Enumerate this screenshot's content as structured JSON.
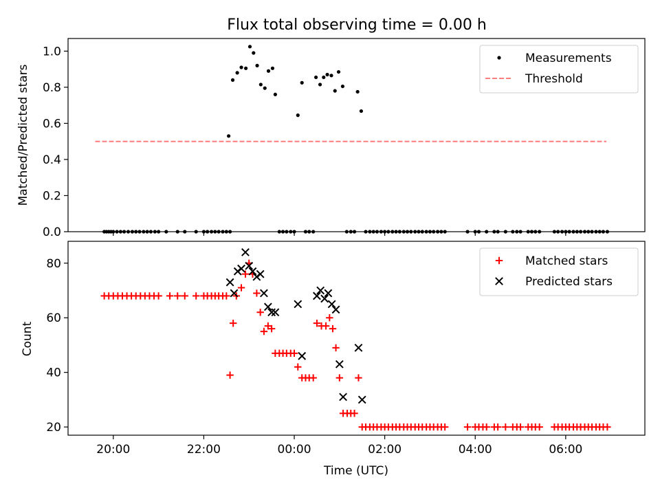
{
  "figure": {
    "title": "Flux total observing time = 0.00 h"
  },
  "chart_data": [
    {
      "type": "scatter",
      "title": "Flux total observing time = 0.00 h",
      "xlabel": "",
      "ylabel": "Matched/Predicted stars",
      "x_unit": "hours since 00:00 UTC",
      "xlim": [
        -5.0,
        7.75
      ],
      "ylim": [
        0.0,
        1.07
      ],
      "yticks": [
        0.0,
        0.2,
        0.4,
        0.6,
        0.8,
        1.0
      ],
      "ytick_labels": [
        "0.0",
        "0.2",
        "0.4",
        "0.6",
        "0.8",
        "1.0"
      ],
      "grid": false,
      "legend": "top-right",
      "series": [
        {
          "name": "Measurements",
          "kind": "scatter",
          "marker": "dot",
          "color": "#000000",
          "points": [
            [
              -4.2,
              0.0
            ],
            [
              -4.15,
              0.0
            ],
            [
              -4.1,
              0.0
            ],
            [
              -4.05,
              0.0
            ],
            [
              -4.0,
              0.0
            ],
            [
              -3.92,
              0.0
            ],
            [
              -3.84,
              0.0
            ],
            [
              -3.76,
              0.0
            ],
            [
              -3.67,
              0.0
            ],
            [
              -3.58,
              0.0
            ],
            [
              -3.5,
              0.0
            ],
            [
              -3.42,
              0.0
            ],
            [
              -3.33,
              0.0
            ],
            [
              -3.25,
              0.0
            ],
            [
              -3.17,
              0.0
            ],
            [
              -3.08,
              0.0
            ],
            [
              -3.0,
              0.0
            ],
            [
              -2.83,
              0.0
            ],
            [
              -2.58,
              0.0
            ],
            [
              -2.42,
              0.0
            ],
            [
              -2.17,
              0.0
            ],
            [
              -2.0,
              0.0
            ],
            [
              -1.92,
              0.0
            ],
            [
              -1.83,
              0.0
            ],
            [
              -1.75,
              0.0
            ],
            [
              -1.67,
              0.0
            ],
            [
              -1.58,
              0.0
            ],
            [
              -1.5,
              0.0
            ],
            [
              -1.42,
              0.0
            ],
            [
              -1.45,
              0.53
            ],
            [
              -1.36,
              0.84
            ],
            [
              -1.26,
              0.88
            ],
            [
              -1.17,
              0.91
            ],
            [
              -1.07,
              0.905
            ],
            [
              -0.98,
              1.025
            ],
            [
              -0.9,
              0.99
            ],
            [
              -0.82,
              0.92
            ],
            [
              -0.74,
              0.815
            ],
            [
              -0.65,
              0.795
            ],
            [
              -0.57,
              0.89
            ],
            [
              -0.48,
              0.905
            ],
            [
              -0.42,
              0.76
            ],
            [
              -0.33,
              0.0
            ],
            [
              -0.25,
              0.0
            ],
            [
              -0.17,
              0.0
            ],
            [
              -0.08,
              0.0
            ],
            [
              0.0,
              0.0
            ],
            [
              0.08,
              0.645
            ],
            [
              0.17,
              0.825
            ],
            [
              0.25,
              0.0
            ],
            [
              0.33,
              0.0
            ],
            [
              0.42,
              0.0
            ],
            [
              0.48,
              0.855
            ],
            [
              0.57,
              0.815
            ],
            [
              0.65,
              0.855
            ],
            [
              0.73,
              0.87
            ],
            [
              0.82,
              0.865
            ],
            [
              0.9,
              0.78
            ],
            [
              0.98,
              0.885
            ],
            [
              1.07,
              0.805
            ],
            [
              1.16,
              0.0
            ],
            [
              1.25,
              0.0
            ],
            [
              1.33,
              0.0
            ],
            [
              1.4,
              0.775
            ],
            [
              1.48,
              0.668
            ],
            [
              1.58,
              0.0
            ],
            [
              1.67,
              0.0
            ],
            [
              1.75,
              0.0
            ],
            [
              1.83,
              0.0
            ],
            [
              1.92,
              0.0
            ],
            [
              2.0,
              0.0
            ],
            [
              2.08,
              0.0
            ],
            [
              2.17,
              0.0
            ],
            [
              2.25,
              0.0
            ],
            [
              2.33,
              0.0
            ],
            [
              2.42,
              0.0
            ],
            [
              2.5,
              0.0
            ],
            [
              2.58,
              0.0
            ],
            [
              2.67,
              0.0
            ],
            [
              2.75,
              0.0
            ],
            [
              2.83,
              0.0
            ],
            [
              2.92,
              0.0
            ],
            [
              3.0,
              0.0
            ],
            [
              3.08,
              0.0
            ],
            [
              3.17,
              0.0
            ],
            [
              3.25,
              0.0
            ],
            [
              3.33,
              0.0
            ],
            [
              3.83,
              0.0
            ],
            [
              4.0,
              0.0
            ],
            [
              4.08,
              0.0
            ],
            [
              4.25,
              0.0
            ],
            [
              4.42,
              0.0
            ],
            [
              4.5,
              0.0
            ],
            [
              4.67,
              0.0
            ],
            [
              4.83,
              0.0
            ],
            [
              4.92,
              0.0
            ],
            [
              5.0,
              0.0
            ],
            [
              5.17,
              0.0
            ],
            [
              5.25,
              0.0
            ],
            [
              5.33,
              0.0
            ],
            [
              5.42,
              0.0
            ],
            [
              5.75,
              0.0
            ],
            [
              5.83,
              0.0
            ],
            [
              5.92,
              0.0
            ],
            [
              6.0,
              0.0
            ],
            [
              6.08,
              0.0
            ],
            [
              6.17,
              0.0
            ],
            [
              6.25,
              0.0
            ],
            [
              6.33,
              0.0
            ],
            [
              6.42,
              0.0
            ],
            [
              6.5,
              0.0
            ],
            [
              6.58,
              0.0
            ],
            [
              6.67,
              0.0
            ],
            [
              6.75,
              0.0
            ],
            [
              6.83,
              0.0
            ],
            [
              6.92,
              0.0
            ]
          ]
        },
        {
          "name": "Threshold",
          "kind": "line",
          "style": "dashed",
          "color": "#ff7f7f",
          "points": [
            [
              -4.4,
              0.5
            ],
            [
              6.9,
              0.5
            ]
          ]
        }
      ]
    },
    {
      "type": "scatter",
      "title": "",
      "xlabel": "Time (UTC)",
      "ylabel": "Count",
      "x_unit": "hours since 00:00 UTC",
      "xlim": [
        -5.0,
        7.75
      ],
      "ylim": [
        17.0,
        88.0
      ],
      "xticks": [
        -4,
        -2,
        0,
        2,
        4,
        6
      ],
      "xtick_labels": [
        "20:00",
        "22:00",
        "00:00",
        "02:00",
        "04:00",
        "06:00"
      ],
      "yticks": [
        20,
        40,
        60,
        80
      ],
      "ytick_labels": [
        "20",
        "40",
        "60",
        "80"
      ],
      "grid": false,
      "legend": "top-right",
      "series": [
        {
          "name": "Matched stars",
          "kind": "scatter",
          "marker": "plus",
          "color": "#ff0000",
          "points": [
            [
              -4.2,
              68
            ],
            [
              -4.1,
              68
            ],
            [
              -4.0,
              68
            ],
            [
              -3.9,
              68
            ],
            [
              -3.8,
              68
            ],
            [
              -3.7,
              68
            ],
            [
              -3.6,
              68
            ],
            [
              -3.5,
              68
            ],
            [
              -3.4,
              68
            ],
            [
              -3.3,
              68
            ],
            [
              -3.2,
              68
            ],
            [
              -3.1,
              68
            ],
            [
              -3.0,
              68
            ],
            [
              -2.75,
              68
            ],
            [
              -2.58,
              68
            ],
            [
              -2.42,
              68
            ],
            [
              -2.17,
              68
            ],
            [
              -2.0,
              68
            ],
            [
              -1.92,
              68
            ],
            [
              -1.83,
              68
            ],
            [
              -1.75,
              68
            ],
            [
              -1.67,
              68
            ],
            [
              -1.58,
              68
            ],
            [
              -1.5,
              68
            ],
            [
              -1.42,
              39
            ],
            [
              -1.35,
              58
            ],
            [
              -1.28,
              68
            ],
            [
              -1.17,
              71
            ],
            [
              -1.08,
              76
            ],
            [
              -1.0,
              80
            ],
            [
              -0.92,
              76
            ],
            [
              -0.83,
              69
            ],
            [
              -0.75,
              62
            ],
            [
              -0.67,
              55
            ],
            [
              -0.58,
              57
            ],
            [
              -0.5,
              56
            ],
            [
              -0.42,
              47
            ],
            [
              -0.33,
              47
            ],
            [
              -0.25,
              47
            ],
            [
              -0.17,
              47
            ],
            [
              -0.08,
              47
            ],
            [
              0.0,
              47
            ],
            [
              0.08,
              42
            ],
            [
              0.17,
              38
            ],
            [
              0.25,
              38
            ],
            [
              0.33,
              38
            ],
            [
              0.42,
              38
            ],
            [
              0.5,
              58
            ],
            [
              0.6,
              57
            ],
            [
              0.7,
              57
            ],
            [
              0.78,
              60
            ],
            [
              0.85,
              56
            ],
            [
              0.92,
              49
            ],
            [
              1.0,
              38
            ],
            [
              1.08,
              25
            ],
            [
              1.17,
              25
            ],
            [
              1.25,
              25
            ],
            [
              1.33,
              25
            ],
            [
              1.42,
              38
            ],
            [
              1.5,
              20
            ],
            [
              1.58,
              20
            ],
            [
              1.67,
              20
            ],
            [
              1.75,
              20
            ],
            [
              1.83,
              20
            ],
            [
              1.92,
              20
            ],
            [
              2.0,
              20
            ],
            [
              2.08,
              20
            ],
            [
              2.17,
              20
            ],
            [
              2.25,
              20
            ],
            [
              2.33,
              20
            ],
            [
              2.42,
              20
            ],
            [
              2.5,
              20
            ],
            [
              2.58,
              20
            ],
            [
              2.67,
              20
            ],
            [
              2.75,
              20
            ],
            [
              2.83,
              20
            ],
            [
              2.92,
              20
            ],
            [
              3.0,
              20
            ],
            [
              3.08,
              20
            ],
            [
              3.17,
              20
            ],
            [
              3.25,
              20
            ],
            [
              3.33,
              20
            ],
            [
              3.83,
              20
            ],
            [
              4.0,
              20
            ],
            [
              4.08,
              20
            ],
            [
              4.17,
              20
            ],
            [
              4.25,
              20
            ],
            [
              4.42,
              20
            ],
            [
              4.5,
              20
            ],
            [
              4.67,
              20
            ],
            [
              4.83,
              20
            ],
            [
              4.92,
              20
            ],
            [
              5.0,
              20
            ],
            [
              5.17,
              20
            ],
            [
              5.25,
              20
            ],
            [
              5.33,
              20
            ],
            [
              5.42,
              20
            ],
            [
              5.75,
              20
            ],
            [
              5.83,
              20
            ],
            [
              5.92,
              20
            ],
            [
              6.0,
              20
            ],
            [
              6.08,
              20
            ],
            [
              6.17,
              20
            ],
            [
              6.25,
              20
            ],
            [
              6.33,
              20
            ],
            [
              6.42,
              20
            ],
            [
              6.5,
              20
            ],
            [
              6.58,
              20
            ],
            [
              6.67,
              20
            ],
            [
              6.75,
              20
            ],
            [
              6.83,
              20
            ],
            [
              6.92,
              20
            ]
          ]
        },
        {
          "name": "Predicted stars",
          "kind": "scatter",
          "marker": "x",
          "color": "#000000",
          "points": [
            [
              -1.42,
              73
            ],
            [
              -1.33,
              69
            ],
            [
              -1.25,
              77
            ],
            [
              -1.17,
              78
            ],
            [
              -1.08,
              84
            ],
            [
              -1.0,
              79
            ],
            [
              -0.92,
              77
            ],
            [
              -0.83,
              75
            ],
            [
              -0.75,
              76
            ],
            [
              -0.67,
              69
            ],
            [
              -0.58,
              64
            ],
            [
              -0.5,
              62
            ],
            [
              -0.42,
              62
            ],
            [
              0.08,
              65
            ],
            [
              0.17,
              46
            ],
            [
              0.5,
              68
            ],
            [
              0.58,
              70
            ],
            [
              0.67,
              67
            ],
            [
              0.75,
              69
            ],
            [
              0.83,
              65
            ],
            [
              0.92,
              63
            ],
            [
              1.0,
              43
            ],
            [
              1.08,
              31
            ],
            [
              1.42,
              49
            ],
            [
              1.5,
              30
            ]
          ]
        }
      ]
    }
  ]
}
